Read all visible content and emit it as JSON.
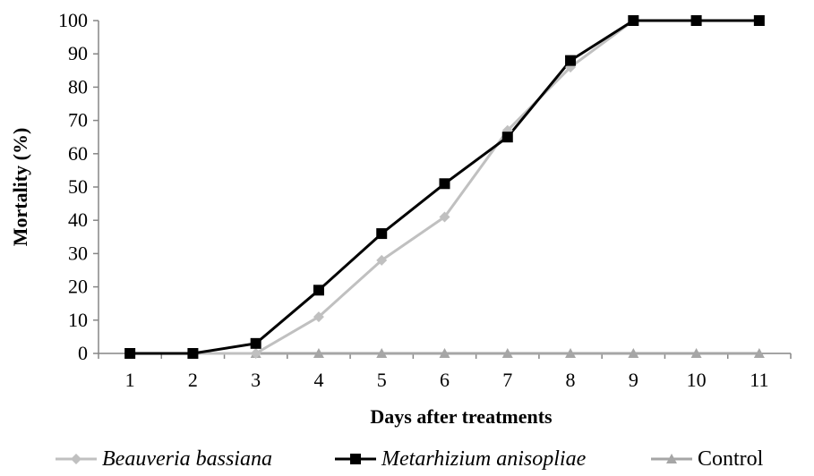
{
  "chart_data": {
    "type": "line",
    "x": [
      1,
      2,
      3,
      4,
      5,
      6,
      7,
      8,
      9,
      10,
      11
    ],
    "xlabel": "Days after treatments",
    "ylabel": "Mortality (%)",
    "ylim": [
      0,
      100
    ],
    "yticks": [
      0,
      10,
      20,
      30,
      40,
      50,
      60,
      70,
      80,
      90,
      100
    ],
    "grid": false,
    "legend_position": "bottom",
    "series": [
      {
        "name": "Beauveria bassiana",
        "italic": true,
        "color": "#c0c0c0",
        "marker": "diamond",
        "values": [
          0,
          0,
          0,
          11,
          28,
          41,
          67,
          86,
          100,
          100,
          100
        ]
      },
      {
        "name": "Metarhizium anisopliae",
        "italic": true,
        "color": "#000000",
        "marker": "square",
        "values": [
          0,
          0,
          3,
          19,
          36,
          51,
          65,
          88,
          100,
          100,
          100
        ]
      },
      {
        "name": "Control",
        "italic": false,
        "color": "#a6a6a6",
        "marker": "triangle",
        "values": [
          0,
          0,
          0,
          0,
          0,
          0,
          0,
          0,
          0,
          0,
          0
        ]
      }
    ]
  }
}
